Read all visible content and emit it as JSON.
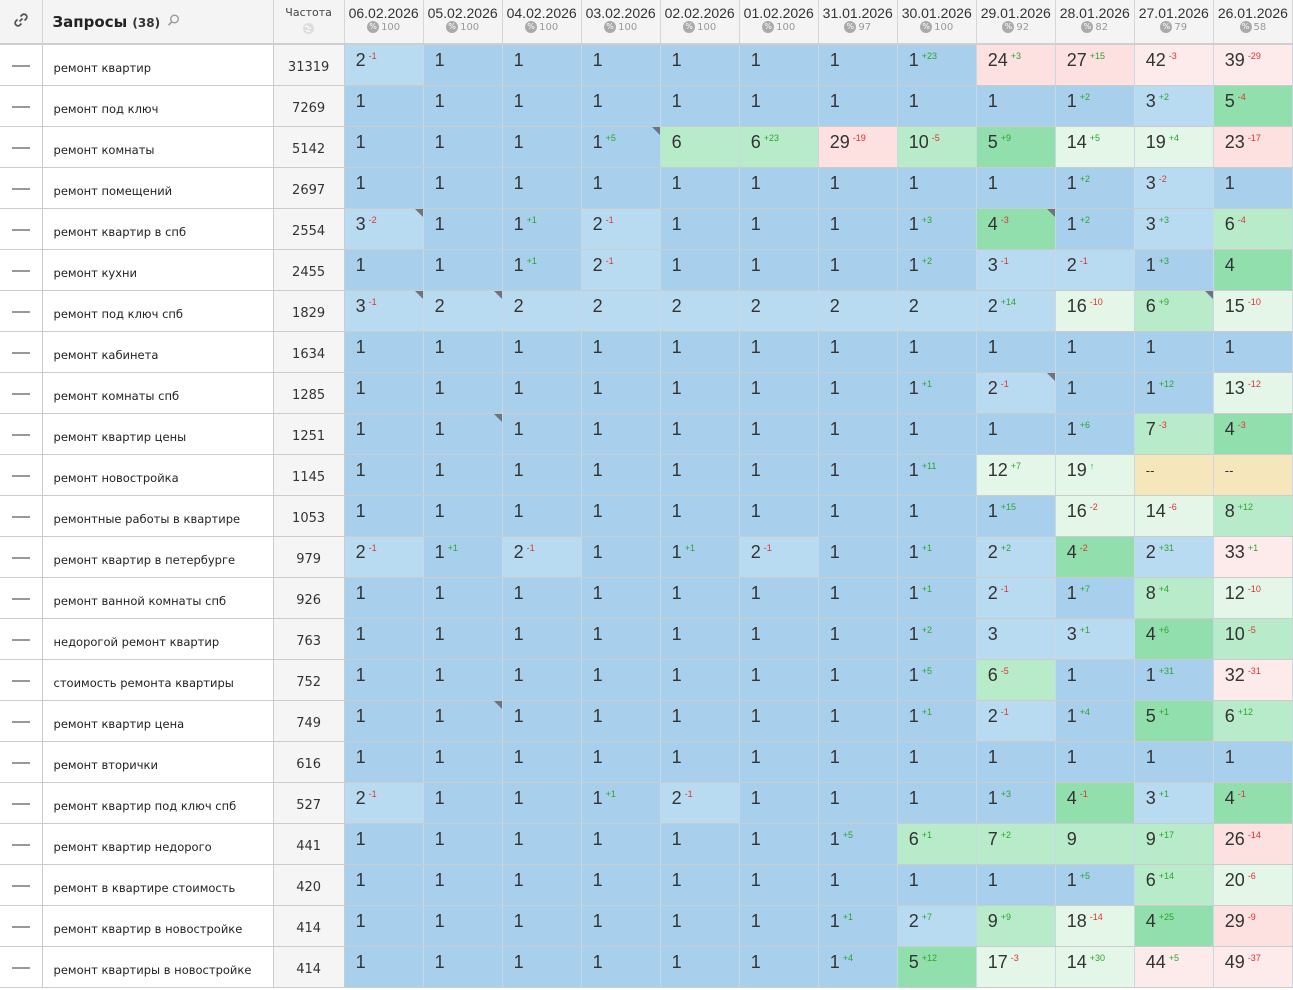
{
  "header": {
    "link_icon": "link-icon",
    "queries_label": "Запросы",
    "queries_count": "(38)",
    "search_icon": "search-icon",
    "freq_label": "Частота",
    "freq_sub_icon": "globe-icon",
    "dates": [
      {
        "date": "06.02.2026",
        "vis": "100"
      },
      {
        "date": "05.02.2026",
        "vis": "100"
      },
      {
        "date": "04.02.2026",
        "vis": "100"
      },
      {
        "date": "03.02.2026",
        "vis": "100"
      },
      {
        "date": "02.02.2026",
        "vis": "100"
      },
      {
        "date": "01.02.2026",
        "vis": "100"
      },
      {
        "date": "31.01.2026",
        "vis": "97"
      },
      {
        "date": "30.01.2026",
        "vis": "100"
      },
      {
        "date": "29.01.2026",
        "vis": "92"
      },
      {
        "date": "28.01.2026",
        "vis": "82"
      },
      {
        "date": "27.01.2026",
        "vis": "79"
      },
      {
        "date": "26.01.2026",
        "vis": "58"
      }
    ]
  },
  "colors": {
    "top1": "#a8d0ed",
    "top3": "#b9dbf1",
    "top5": "#92dfae",
    "top10": "#b8ebc9",
    "top20": "#e3f6e8",
    "top30": "#fde0e0",
    "worse": "#fdebeb",
    "white": "#ffffff",
    "none": "#f5e6bc"
  },
  "rows": [
    {
      "q": "ремонт квартир",
      "f": "31319",
      "cells": [
        [
          "2",
          "-1"
        ],
        [
          "1",
          ""
        ],
        [
          "1",
          ""
        ],
        [
          "1",
          ""
        ],
        [
          "1",
          ""
        ],
        [
          "1",
          ""
        ],
        [
          "1",
          ""
        ],
        [
          "1",
          "+23"
        ],
        [
          "24",
          "+3"
        ],
        [
          "27",
          "+15"
        ],
        [
          "42",
          "-3"
        ],
        [
          "39",
          "-29"
        ]
      ]
    },
    {
      "q": "ремонт под ключ",
      "f": "7269",
      "cells": [
        [
          "1",
          ""
        ],
        [
          "1",
          ""
        ],
        [
          "1",
          ""
        ],
        [
          "1",
          ""
        ],
        [
          "1",
          ""
        ],
        [
          "1",
          ""
        ],
        [
          "1",
          ""
        ],
        [
          "1",
          ""
        ],
        [
          "1",
          ""
        ],
        [
          "1",
          "+2"
        ],
        [
          "3",
          "+2"
        ],
        [
          "5",
          "-4"
        ]
      ]
    },
    {
      "q": "ремонт комнаты",
      "f": "5142",
      "cells": [
        [
          "1",
          ""
        ],
        [
          "1",
          ""
        ],
        [
          "1",
          ""
        ],
        [
          "1",
          "+5",
          "c"
        ],
        [
          "6",
          ""
        ],
        [
          "6",
          "+23"
        ],
        [
          "29",
          "-19"
        ],
        [
          "10",
          "-5"
        ],
        [
          "5",
          "+9"
        ],
        [
          "14",
          "+5"
        ],
        [
          "19",
          "+4"
        ],
        [
          "23",
          "-17"
        ]
      ]
    },
    {
      "q": "ремонт помещений",
      "f": "2697",
      "cells": [
        [
          "1",
          ""
        ],
        [
          "1",
          ""
        ],
        [
          "1",
          ""
        ],
        [
          "1",
          ""
        ],
        [
          "1",
          ""
        ],
        [
          "1",
          ""
        ],
        [
          "1",
          ""
        ],
        [
          "1",
          ""
        ],
        [
          "1",
          ""
        ],
        [
          "1",
          "+2"
        ],
        [
          "3",
          "-2"
        ],
        [
          "1",
          ""
        ]
      ]
    },
    {
      "q": "ремонт квартир в спб",
      "f": "2554",
      "cells": [
        [
          "3",
          "-2",
          "c"
        ],
        [
          "1",
          ""
        ],
        [
          "1",
          "+1"
        ],
        [
          "2",
          "-1"
        ],
        [
          "1",
          ""
        ],
        [
          "1",
          ""
        ],
        [
          "1",
          ""
        ],
        [
          "1",
          "+3"
        ],
        [
          "4",
          "-3",
          "c"
        ],
        [
          "1",
          "+2"
        ],
        [
          "3",
          "+3"
        ],
        [
          "6",
          "-4"
        ]
      ]
    },
    {
      "q": "ремонт кухни",
      "f": "2455",
      "cells": [
        [
          "1",
          ""
        ],
        [
          "1",
          ""
        ],
        [
          "1",
          "+1"
        ],
        [
          "2",
          "-1"
        ],
        [
          "1",
          ""
        ],
        [
          "1",
          ""
        ],
        [
          "1",
          ""
        ],
        [
          "1",
          "+2"
        ],
        [
          "3",
          "-1"
        ],
        [
          "2",
          "-1"
        ],
        [
          "1",
          "+3"
        ],
        [
          "4",
          ""
        ]
      ]
    },
    {
      "q": "ремонт под ключ спб",
      "f": "1829",
      "cells": [
        [
          "3",
          "-1",
          "c"
        ],
        [
          "2",
          "",
          "c"
        ],
        [
          "2",
          ""
        ],
        [
          "2",
          ""
        ],
        [
          "2",
          ""
        ],
        [
          "2",
          ""
        ],
        [
          "2",
          ""
        ],
        [
          "2",
          ""
        ],
        [
          "2",
          "+14"
        ],
        [
          "16",
          "-10"
        ],
        [
          "6",
          "+9",
          "c"
        ],
        [
          "15",
          "-10"
        ]
      ]
    },
    {
      "q": "ремонт кабинета",
      "f": "1634",
      "cells": [
        [
          "1",
          ""
        ],
        [
          "1",
          ""
        ],
        [
          "1",
          ""
        ],
        [
          "1",
          ""
        ],
        [
          "1",
          ""
        ],
        [
          "1",
          ""
        ],
        [
          "1",
          ""
        ],
        [
          "1",
          ""
        ],
        [
          "1",
          ""
        ],
        [
          "1",
          ""
        ],
        [
          "1",
          ""
        ],
        [
          "1",
          ""
        ]
      ]
    },
    {
      "q": "ремонт комнаты спб",
      "f": "1285",
      "cells": [
        [
          "1",
          ""
        ],
        [
          "1",
          ""
        ],
        [
          "1",
          ""
        ],
        [
          "1",
          ""
        ],
        [
          "1",
          ""
        ],
        [
          "1",
          ""
        ],
        [
          "1",
          ""
        ],
        [
          "1",
          "+1"
        ],
        [
          "2",
          "-1",
          "c"
        ],
        [
          "1",
          ""
        ],
        [
          "1",
          "+12"
        ],
        [
          "13",
          "-12"
        ]
      ]
    },
    {
      "q": "ремонт квартир цены",
      "f": "1251",
      "cells": [
        [
          "1",
          ""
        ],
        [
          "1",
          "",
          "c"
        ],
        [
          "1",
          ""
        ],
        [
          "1",
          ""
        ],
        [
          "1",
          ""
        ],
        [
          "1",
          ""
        ],
        [
          "1",
          ""
        ],
        [
          "1",
          ""
        ],
        [
          "1",
          ""
        ],
        [
          "1",
          "+6"
        ],
        [
          "7",
          "-3"
        ],
        [
          "4",
          "-3"
        ]
      ]
    },
    {
      "q": "ремонт новостройка",
      "f": "1145",
      "cells": [
        [
          "1",
          ""
        ],
        [
          "1",
          ""
        ],
        [
          "1",
          ""
        ],
        [
          "1",
          ""
        ],
        [
          "1",
          ""
        ],
        [
          "1",
          ""
        ],
        [
          "1",
          ""
        ],
        [
          "1",
          "+11"
        ],
        [
          "12",
          "+7"
        ],
        [
          "19",
          "↑"
        ],
        [
          "--",
          ""
        ],
        [
          "--",
          ""
        ]
      ]
    },
    {
      "q": "ремонтные работы в квартире",
      "f": "1053",
      "cells": [
        [
          "1",
          ""
        ],
        [
          "1",
          ""
        ],
        [
          "1",
          ""
        ],
        [
          "1",
          ""
        ],
        [
          "1",
          ""
        ],
        [
          "1",
          ""
        ],
        [
          "1",
          ""
        ],
        [
          "1",
          ""
        ],
        [
          "1",
          "+15"
        ],
        [
          "16",
          "-2"
        ],
        [
          "14",
          "-6"
        ],
        [
          "8",
          "+12"
        ]
      ]
    },
    {
      "q": "ремонт квартир в петербурге",
      "f": "979",
      "cells": [
        [
          "2",
          "-1"
        ],
        [
          "1",
          "+1"
        ],
        [
          "2",
          "-1"
        ],
        [
          "1",
          ""
        ],
        [
          "1",
          "+1"
        ],
        [
          "2",
          "-1"
        ],
        [
          "1",
          ""
        ],
        [
          "1",
          "+1"
        ],
        [
          "2",
          "+2"
        ],
        [
          "4",
          "-2"
        ],
        [
          "2",
          "+31"
        ],
        [
          "33",
          "+1"
        ]
      ]
    },
    {
      "q": "ремонт ванной комнаты спб",
      "f": "926",
      "cells": [
        [
          "1",
          ""
        ],
        [
          "1",
          ""
        ],
        [
          "1",
          ""
        ],
        [
          "1",
          ""
        ],
        [
          "1",
          ""
        ],
        [
          "1",
          ""
        ],
        [
          "1",
          ""
        ],
        [
          "1",
          "+1"
        ],
        [
          "2",
          "-1"
        ],
        [
          "1",
          "+7"
        ],
        [
          "8",
          "+4"
        ],
        [
          "12",
          "-10"
        ]
      ]
    },
    {
      "q": "недорогой ремонт квартир",
      "f": "763",
      "cells": [
        [
          "1",
          ""
        ],
        [
          "1",
          ""
        ],
        [
          "1",
          ""
        ],
        [
          "1",
          ""
        ],
        [
          "1",
          ""
        ],
        [
          "1",
          ""
        ],
        [
          "1",
          ""
        ],
        [
          "1",
          "+2"
        ],
        [
          "3",
          ""
        ],
        [
          "3",
          "+1"
        ],
        [
          "4",
          "+6"
        ],
        [
          "10",
          "-5"
        ]
      ]
    },
    {
      "q": "стоимость ремонта квартиры",
      "f": "752",
      "cells": [
        [
          "1",
          ""
        ],
        [
          "1",
          ""
        ],
        [
          "1",
          ""
        ],
        [
          "1",
          ""
        ],
        [
          "1",
          ""
        ],
        [
          "1",
          ""
        ],
        [
          "1",
          ""
        ],
        [
          "1",
          "+5"
        ],
        [
          "6",
          "-5"
        ],
        [
          "1",
          ""
        ],
        [
          "1",
          "+31"
        ],
        [
          "32",
          "-31"
        ]
      ]
    },
    {
      "q": "ремонт квартир цена",
      "f": "749",
      "cells": [
        [
          "1",
          ""
        ],
        [
          "1",
          "",
          "c"
        ],
        [
          "1",
          ""
        ],
        [
          "1",
          ""
        ],
        [
          "1",
          ""
        ],
        [
          "1",
          ""
        ],
        [
          "1",
          ""
        ],
        [
          "1",
          "+1"
        ],
        [
          "2",
          "-1"
        ],
        [
          "1",
          "+4"
        ],
        [
          "5",
          "+1"
        ],
        [
          "6",
          "+12"
        ]
      ]
    },
    {
      "q": "ремонт вторички",
      "f": "616",
      "cells": [
        [
          "1",
          ""
        ],
        [
          "1",
          ""
        ],
        [
          "1",
          ""
        ],
        [
          "1",
          ""
        ],
        [
          "1",
          ""
        ],
        [
          "1",
          ""
        ],
        [
          "1",
          ""
        ],
        [
          "1",
          ""
        ],
        [
          "1",
          ""
        ],
        [
          "1",
          ""
        ],
        [
          "1",
          ""
        ],
        [
          "1",
          ""
        ]
      ]
    },
    {
      "q": "ремонт квартир под ключ спб",
      "f": "527",
      "cells": [
        [
          "2",
          "-1"
        ],
        [
          "1",
          ""
        ],
        [
          "1",
          ""
        ],
        [
          "1",
          "+1"
        ],
        [
          "2",
          "-1"
        ],
        [
          "1",
          ""
        ],
        [
          "1",
          ""
        ],
        [
          "1",
          ""
        ],
        [
          "1",
          "+3"
        ],
        [
          "4",
          "-1"
        ],
        [
          "3",
          "+1"
        ],
        [
          "4",
          "-1"
        ]
      ]
    },
    {
      "q": "ремонт квартир недорого",
      "f": "441",
      "cells": [
        [
          "1",
          ""
        ],
        [
          "1",
          ""
        ],
        [
          "1",
          ""
        ],
        [
          "1",
          ""
        ],
        [
          "1",
          ""
        ],
        [
          "1",
          ""
        ],
        [
          "1",
          "+5"
        ],
        [
          "6",
          "+1"
        ],
        [
          "7",
          "+2"
        ],
        [
          "9",
          ""
        ],
        [
          "9",
          "+17"
        ],
        [
          "26",
          "-14"
        ]
      ]
    },
    {
      "q": "ремонт в квартире стоимость",
      "f": "420",
      "cells": [
        [
          "1",
          ""
        ],
        [
          "1",
          ""
        ],
        [
          "1",
          ""
        ],
        [
          "1",
          ""
        ],
        [
          "1",
          ""
        ],
        [
          "1",
          ""
        ],
        [
          "1",
          ""
        ],
        [
          "1",
          ""
        ],
        [
          "1",
          ""
        ],
        [
          "1",
          "+5"
        ],
        [
          "6",
          "+14"
        ],
        [
          "20",
          "-6"
        ]
      ]
    },
    {
      "q": "ремонт квартир в новостройке",
      "f": "414",
      "cells": [
        [
          "1",
          ""
        ],
        [
          "1",
          ""
        ],
        [
          "1",
          ""
        ],
        [
          "1",
          ""
        ],
        [
          "1",
          ""
        ],
        [
          "1",
          ""
        ],
        [
          "1",
          "+1"
        ],
        [
          "2",
          "+7"
        ],
        [
          "9",
          "+9"
        ],
        [
          "18",
          "-14"
        ],
        [
          "4",
          "+25"
        ],
        [
          "29",
          "-9"
        ]
      ]
    },
    {
      "q": "ремонт квартиры в новостройке",
      "f": "414",
      "cells": [
        [
          "1",
          ""
        ],
        [
          "1",
          ""
        ],
        [
          "1",
          ""
        ],
        [
          "1",
          ""
        ],
        [
          "1",
          ""
        ],
        [
          "1",
          ""
        ],
        [
          "1",
          "+4"
        ],
        [
          "5",
          "+12"
        ],
        [
          "17",
          "-3"
        ],
        [
          "14",
          "+30"
        ],
        [
          "44",
          "+5"
        ],
        [
          "49",
          "-37"
        ]
      ]
    }
  ]
}
